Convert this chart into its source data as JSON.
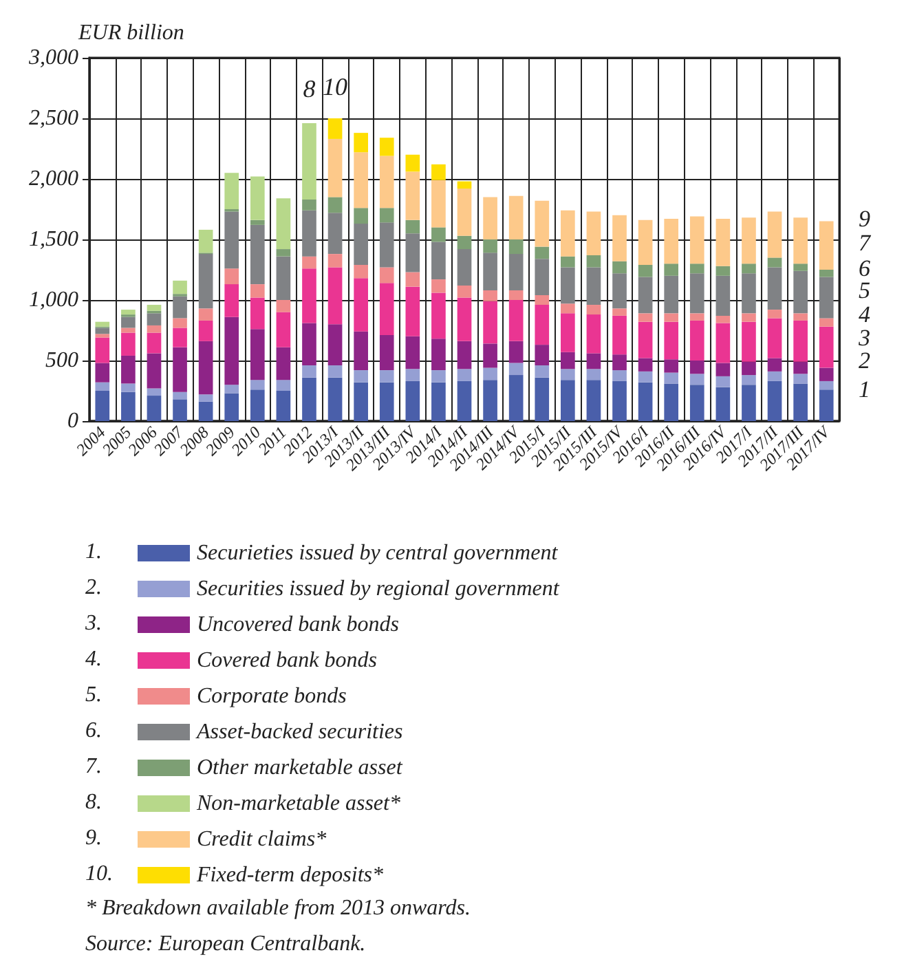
{
  "chart_data": {
    "type": "bar",
    "stacked": true,
    "ylabel": "EUR billion",
    "categories": [
      "2004",
      "2005",
      "2006",
      "2007",
      "2008",
      "2009",
      "2010",
      "2011",
      "2012",
      "2013/I",
      "2013/II",
      "2013/III",
      "2013/IV",
      "2014/I",
      "2014/II",
      "2014/III",
      "2014/IV",
      "2015/I",
      "2015/II",
      "2015/III",
      "2015/IV",
      "2016/I",
      "2016/II",
      "2016/III",
      "2016/IV",
      "2017/I",
      "2017/II",
      "2017/III",
      "2017/IV"
    ],
    "series": [
      {
        "name": "Securieties issued by central government",
        "color": "#4a5faa",
        "values": [
          250,
          240,
          210,
          180,
          160,
          230,
          260,
          250,
          360,
          360,
          320,
          320,
          330,
          320,
          330,
          340,
          380,
          360,
          340,
          340,
          330,
          320,
          310,
          300,
          280,
          300,
          330,
          310,
          260
        ]
      },
      {
        "name": "Securities issued by regional government",
        "color": "#959fd3",
        "values": [
          70,
          70,
          60,
          60,
          60,
          70,
          80,
          90,
          100,
          100,
          100,
          100,
          100,
          100,
          100,
          100,
          100,
          100,
          90,
          90,
          90,
          90,
          90,
          90,
          90,
          80,
          80,
          80,
          70
        ]
      },
      {
        "name": "Uncovered bank bonds",
        "color": "#8e2487",
        "values": [
          160,
          230,
          290,
          370,
          440,
          560,
          420,
          270,
          350,
          340,
          320,
          290,
          270,
          260,
          230,
          200,
          180,
          170,
          140,
          130,
          130,
          110,
          110,
          110,
          110,
          110,
          110,
          100,
          110
        ]
      },
      {
        "name": "Covered bank bonds",
        "color": "#ea3592",
        "values": [
          210,
          190,
          170,
          160,
          170,
          270,
          260,
          290,
          450,
          470,
          440,
          430,
          410,
          380,
          360,
          350,
          340,
          330,
          320,
          320,
          320,
          300,
          310,
          330,
          330,
          330,
          330,
          340,
          340
        ]
      },
      {
        "name": "Corporate bonds",
        "color": "#f08b8b",
        "values": [
          30,
          40,
          60,
          80,
          100,
          130,
          110,
          100,
          100,
          110,
          110,
          130,
          120,
          110,
          100,
          90,
          80,
          80,
          80,
          80,
          60,
          70,
          70,
          60,
          60,
          70,
          70,
          60,
          70
        ]
      },
      {
        "name": "Asset-backed securities",
        "color": "#808285",
        "values": [
          50,
          90,
          100,
          180,
          450,
          470,
          490,
          360,
          380,
          340,
          340,
          370,
          320,
          310,
          300,
          310,
          300,
          300,
          300,
          310,
          290,
          300,
          310,
          330,
          330,
          330,
          350,
          350,
          340
        ]
      },
      {
        "name": "Other marketable asset",
        "color": "#7d9f74",
        "values": [
          10,
          20,
          20,
          20,
          10,
          20,
          40,
          60,
          90,
          130,
          130,
          120,
          110,
          120,
          110,
          110,
          120,
          100,
          90,
          100,
          100,
          100,
          100,
          80,
          80,
          80,
          80,
          60,
          60
        ]
      },
      {
        "name": "Non-marketable asset*",
        "color": "#b7d88a",
        "values": [
          40,
          40,
          50,
          110,
          190,
          300,
          360,
          420,
          630,
          null,
          null,
          null,
          null,
          null,
          null,
          null,
          null,
          null,
          null,
          null,
          null,
          null,
          null,
          null,
          null,
          null,
          null,
          null,
          null
        ]
      },
      {
        "name": "Credit claims*",
        "color": "#fdc98a",
        "values": [
          null,
          null,
          null,
          null,
          null,
          null,
          null,
          null,
          null,
          480,
          460,
          430,
          400,
          390,
          390,
          350,
          360,
          380,
          380,
          360,
          380,
          370,
          370,
          390,
          390,
          380,
          380,
          380,
          400
        ]
      },
      {
        "name": "Fixed-term deposits*",
        "color": "#fede02",
        "values": [
          null,
          null,
          null,
          null,
          null,
          null,
          null,
          null,
          null,
          170,
          160,
          150,
          140,
          130,
          60,
          null,
          null,
          null,
          null,
          null,
          null,
          null,
          null,
          null,
          null,
          null,
          null,
          null,
          null
        ]
      }
    ],
    "ylim": [
      0,
      3000
    ],
    "yticks": [
      0,
      500,
      {
        "value": 1000,
        "label": "1,000"
      },
      {
        "value": 1500,
        "label": "1,500"
      },
      {
        "value": 2000,
        "label": "2,000"
      },
      {
        "value": 2500,
        "label": "2,500"
      },
      {
        "value": 3000,
        "label": "3,000"
      }
    ],
    "grid": true,
    "legend": "bottom",
    "annotations": [
      {
        "text": "8",
        "x": "2012",
        "y": 2460
      },
      {
        "text": "10",
        "x": "2013/I",
        "y": 2480
      },
      {
        "text": "1",
        "x": "2017/IV",
        "y": 260
      },
      {
        "text": "2",
        "x": "2017/IV",
        "y": 500
      },
      {
        "text": "3",
        "x": "2017/IV",
        "y": 690
      },
      {
        "text": "4",
        "x": "2017/IV",
        "y": 880
      },
      {
        "text": "5",
        "x": "2017/IV",
        "y": 1080
      },
      {
        "text": "6",
        "x": "2017/IV",
        "y": 1260
      },
      {
        "text": "7",
        "x": "2017/IV",
        "y": 1470
      },
      {
        "text": "9",
        "x": "2017/IV",
        "y": 1670
      },
      "1.",
      "2.",
      "3.",
      "4.",
      "5.",
      "6.",
      "7.",
      "8.",
      "9.",
      "10.",
      "* Breakdown available from 2013 onwards.",
      "Source: European Centralbank."
    ]
  }
}
